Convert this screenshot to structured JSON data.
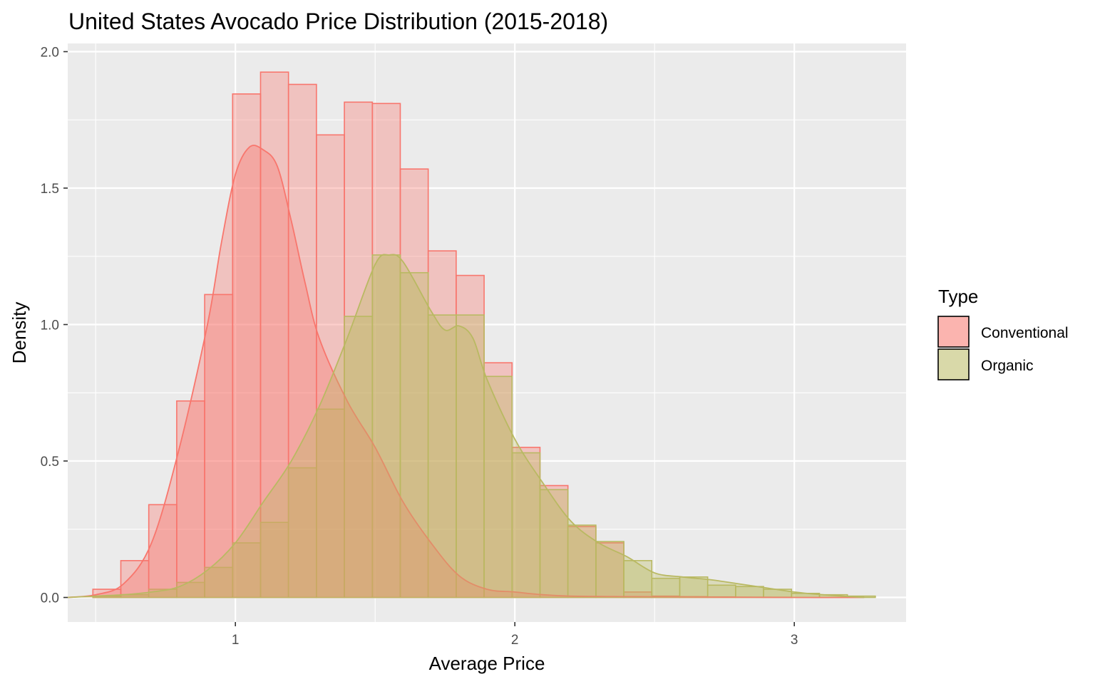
{
  "chart_data": {
    "type": "histogram",
    "title": "United States Avocado Price Distribution (2015-2018)",
    "xlabel": "Average Price",
    "ylabel": "Density",
    "xlim": [
      0.4,
      3.4
    ],
    "ylim": [
      -0.09,
      2.03
    ],
    "x_ticks": [
      1,
      2,
      3
    ],
    "x_tick_labels": [
      "1",
      "2",
      "3"
    ],
    "y_ticks": [
      0,
      0.5,
      1,
      1.5,
      2
    ],
    "y_tick_labels": [
      "0.0",
      "0.5",
      "1.0",
      "1.5",
      "2.0"
    ],
    "grid": true,
    "background": "#ebebeb",
    "bin_width": 0.1,
    "bin_starts": [
      0.49,
      0.59,
      0.69,
      0.79,
      0.89,
      0.99,
      1.09,
      1.19,
      1.29,
      1.39,
      1.49,
      1.59,
      1.69,
      1.79,
      1.89,
      1.99,
      2.09,
      2.19,
      2.29,
      2.39,
      2.49,
      2.59,
      2.69,
      2.79,
      2.89,
      2.99,
      3.09,
      3.19
    ],
    "legend": {
      "title": "Type",
      "position": "right"
    },
    "series": [
      {
        "name": "Conventional",
        "fill": "#f8766d",
        "stroke": "#f8766d",
        "bin_values": [
          0.03,
          0.135,
          0.34,
          0.72,
          1.11,
          1.845,
          1.925,
          1.88,
          1.695,
          1.815,
          1.81,
          1.57,
          1.27,
          1.18,
          0.86,
          0.55,
          0.41,
          0.26,
          0.2,
          0.02,
          0.005,
          0.003,
          0.002,
          0.001,
          0.001,
          0,
          0,
          0
        ],
        "density_x": [
          0.4,
          0.5,
          0.6,
          0.7,
          0.8,
          0.9,
          0.95,
          1.0,
          1.05,
          1.1,
          1.15,
          1.2,
          1.25,
          1.3,
          1.4,
          1.5,
          1.6,
          1.7,
          1.8,
          1.9,
          2.0,
          2.1,
          2.2,
          2.4,
          2.6,
          2.8,
          3.0,
          3.25
        ],
        "density_y": [
          0.0,
          0.01,
          0.05,
          0.2,
          0.55,
          1.0,
          1.3,
          1.55,
          1.65,
          1.64,
          1.58,
          1.38,
          1.15,
          0.95,
          0.72,
          0.55,
          0.35,
          0.2,
          0.08,
          0.03,
          0.02,
          0.01,
          0.005,
          0.003,
          0.002,
          0.001,
          0.0,
          0.0
        ]
      },
      {
        "name": "Organic",
        "fill": "#b9b962",
        "stroke": "#b9b962",
        "bin_values": [
          0.005,
          0.01,
          0.03,
          0.055,
          0.11,
          0.2,
          0.275,
          0.475,
          0.69,
          1.03,
          1.255,
          1.19,
          1.035,
          1.035,
          0.81,
          0.53,
          0.395,
          0.265,
          0.205,
          0.135,
          0.07,
          0.075,
          0.045,
          0.04,
          0.03,
          0.015,
          0.01,
          0.005
        ],
        "density_x": [
          0.4,
          0.5,
          0.6,
          0.7,
          0.8,
          0.9,
          1.0,
          1.1,
          1.2,
          1.3,
          1.4,
          1.5,
          1.55,
          1.6,
          1.7,
          1.75,
          1.8,
          1.85,
          1.9,
          2.0,
          2.1,
          2.2,
          2.3,
          2.4,
          2.5,
          2.6,
          2.7,
          2.8,
          2.9,
          3.0,
          3.1,
          3.25
        ],
        "density_y": [
          0.0,
          0.005,
          0.01,
          0.02,
          0.04,
          0.1,
          0.2,
          0.35,
          0.5,
          0.7,
          0.95,
          1.22,
          1.255,
          1.23,
          1.05,
          0.98,
          0.995,
          0.95,
          0.8,
          0.58,
          0.42,
          0.28,
          0.2,
          0.15,
          0.09,
          0.075,
          0.065,
          0.05,
          0.035,
          0.02,
          0.01,
          0.0
        ]
      }
    ]
  }
}
